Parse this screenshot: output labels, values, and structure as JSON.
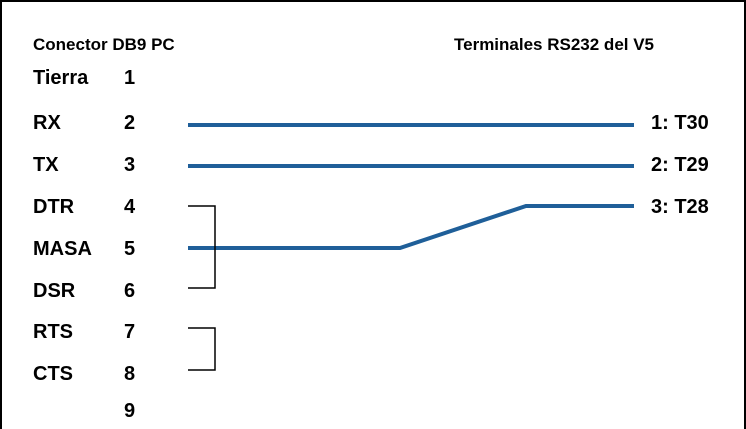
{
  "header": {
    "left_title": "Conector DB9 PC",
    "right_title": "Terminales RS232 del V5"
  },
  "pins": [
    {
      "name": "Tierra",
      "number": "1"
    },
    {
      "name": "RX",
      "number": "2"
    },
    {
      "name": "TX",
      "number": "3"
    },
    {
      "name": "DTR",
      "number": "4"
    },
    {
      "name": "MASA",
      "number": "5"
    },
    {
      "name": "DSR",
      "number": "6"
    },
    {
      "name": "RTS",
      "number": "7"
    },
    {
      "name": "CTS",
      "number": "8"
    },
    {
      "name": "",
      "number": "9"
    }
  ],
  "terminals": [
    {
      "label": "1: T30"
    },
    {
      "label": "2: T29"
    },
    {
      "label": "3: T28"
    }
  ],
  "colors": {
    "wire": "#1f5f99",
    "bracket": "#000000",
    "border": "#000000"
  }
}
